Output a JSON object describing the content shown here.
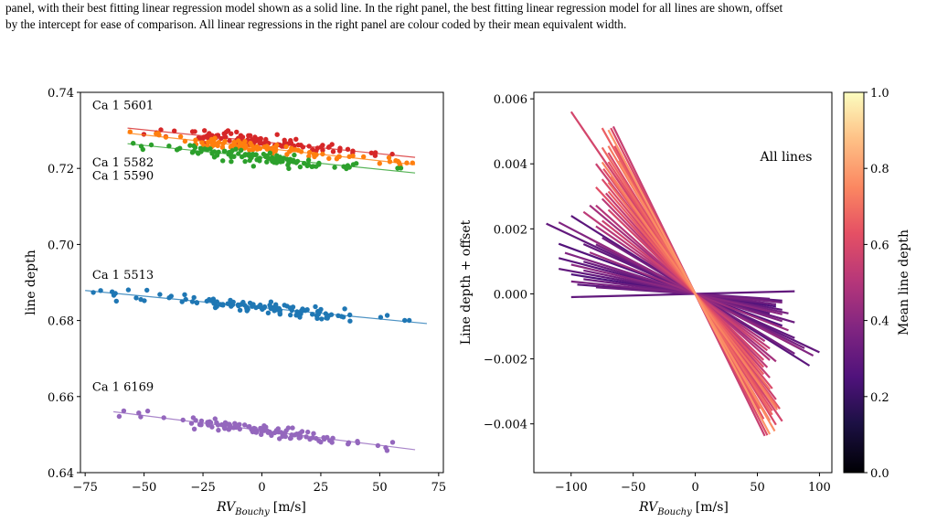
{
  "caption": {
    "line1": "panel, with their best fitting linear regression model shown as a solid line. In the right panel, the best fitting linear regression model for all lines are shown, offset",
    "line2": "by the intercept for ease of comparison. All linear regressions in the right panel are colour coded by their mean equivalent width."
  },
  "chart_data": [
    {
      "type": "scatter",
      "xlabel_main": "RV",
      "xlabel_sub": "Bouchy",
      "xlabel_unit": "[m/s]",
      "ylabel": "line depth",
      "xlim": [
        -77,
        77
      ],
      "ylim": [
        0.64,
        0.74
      ],
      "xticks": [
        -75,
        -50,
        -25,
        0,
        25,
        50,
        75
      ],
      "xtick_labels": [
        "−75",
        "−50",
        "−25",
        "0",
        "25",
        "50",
        "75"
      ],
      "yticks": [
        0.64,
        0.66,
        0.68,
        0.7,
        0.72,
        0.74
      ],
      "ytick_labels": [
        "0.64",
        "0.66",
        "0.68",
        "0.70",
        "0.72",
        "0.74"
      ],
      "grid": false,
      "series": [
        {
          "name": "Ca 1 5601",
          "color": "#d62728",
          "label_pos": [
            -72,
            0.7355
          ],
          "fit": {
            "slope": -6.3e-05,
            "intercept": 0.727,
            "x0": -57,
            "x1": 65
          },
          "scatter_sd": 0.0012,
          "n": 110
        },
        {
          "name": "Ca 1 5582",
          "color": "#ff7f0e",
          "label_pos": [
            -72,
            0.7205
          ],
          "fit": {
            "slope": -6.8e-05,
            "intercept": 0.7254,
            "x0": -57,
            "x1": 65
          },
          "scatter_sd": 0.001,
          "n": 100
        },
        {
          "name": "Ca 1 5590",
          "color": "#2ca02c",
          "label_pos": [
            -72,
            0.717
          ],
          "fit": {
            "slope": -6.3e-05,
            "intercept": 0.7229,
            "x0": -57,
            "x1": 65
          },
          "scatter_sd": 0.0012,
          "n": 110
        },
        {
          "name": "Ca 1 5513",
          "color": "#1f77b4",
          "label_pos": [
            -72,
            0.691
          ],
          "fit": {
            "slope": -6e-05,
            "intercept": 0.6834,
            "x0": -75,
            "x1": 70
          },
          "scatter_sd": 0.0012,
          "n": 120
        },
        {
          "name": "Ca 1 6169",
          "color": "#9467bd",
          "label_pos": [
            -72,
            0.6615
          ],
          "fit": {
            "slope": -7.8e-05,
            "intercept": 0.6511,
            "x0": -63,
            "x1": 65
          },
          "scatter_sd": 0.001,
          "n": 110
        }
      ]
    },
    {
      "type": "line",
      "annotation": "All lines",
      "xlabel_main": "RV",
      "xlabel_sub": "Bouchy",
      "xlabel_unit": "[m/s]",
      "ylabel": "Line depth + offset",
      "xlim": [
        -130,
        110
      ],
      "ylim": [
        -0.0055,
        0.0062
      ],
      "xticks": [
        -100,
        -50,
        0,
        50,
        100
      ],
      "xtick_labels": [
        "−100",
        "−50",
        "0",
        "50",
        "100"
      ],
      "yticks": [
        -0.004,
        -0.002,
        0.0,
        0.002,
        0.004,
        0.006
      ],
      "ytick_labels": [
        "−0.004",
        "−0.002",
        "0.000",
        "0.002",
        "0.004",
        "0.006"
      ],
      "grid": false,
      "colorbar": {
        "label": "Mean line depth",
        "range": [
          0.0,
          1.0
        ],
        "ticks": [
          0.0,
          0.2,
          0.4,
          0.6,
          0.8,
          1.0
        ],
        "tick_labels": [
          "0.0",
          "0.2",
          "0.4",
          "0.6",
          "0.8",
          "1.0"
        ],
        "colormap": "magma"
      },
      "lines": [
        {
          "slope": -5.6e-05,
          "x0": -100,
          "x1": 55,
          "depth": 0.58
        },
        {
          "slope": -7e-05,
          "x0": -65,
          "x1": 55,
          "depth": 0.62
        },
        {
          "slope": -7.2e-05,
          "x0": -70,
          "x1": 60,
          "depth": 0.78
        },
        {
          "slope": -6.8e-05,
          "x0": -75,
          "x1": 52,
          "depth": 0.66
        },
        {
          "slope": -6.5e-05,
          "x0": -70,
          "x1": 60,
          "depth": 0.72
        },
        {
          "slope": -6.2e-05,
          "x0": -70,
          "x1": 65,
          "depth": 0.6
        },
        {
          "slope": -6e-05,
          "x0": -75,
          "x1": 62,
          "depth": 0.68
        },
        {
          "slope": -5.8e-05,
          "x0": -70,
          "x1": 62,
          "depth": 0.64
        },
        {
          "slope": -5.6e-05,
          "x0": -72,
          "x1": 70,
          "depth": 0.58
        },
        {
          "slope": -5.4e-05,
          "x0": -75,
          "x1": 66,
          "depth": 0.74
        },
        {
          "slope": -5.2e-05,
          "x0": -74,
          "x1": 68,
          "depth": 0.62
        },
        {
          "slope": -5e-05,
          "x0": -80,
          "x1": 65,
          "depth": 0.56
        },
        {
          "slope": -4.9e-05,
          "x0": -70,
          "x1": 60,
          "depth": 0.7
        },
        {
          "slope": -4.7e-05,
          "x0": -75,
          "x1": 62,
          "depth": 0.6
        },
        {
          "slope": -4.5e-05,
          "x0": -70,
          "x1": 55,
          "depth": 0.66
        },
        {
          "slope": -4.3e-05,
          "x0": -72,
          "x1": 60,
          "depth": 0.54
        },
        {
          "slope": -4.1e-05,
          "x0": -80,
          "x1": 55,
          "depth": 0.62
        },
        {
          "slope": -3.9e-05,
          "x0": -75,
          "x1": 58,
          "depth": 0.52
        },
        {
          "slope": -3.7e-05,
          "x0": -70,
          "x1": 55,
          "depth": 0.58
        },
        {
          "slope": -3.4e-05,
          "x0": -80,
          "x1": 60,
          "depth": 0.5
        },
        {
          "slope": -3e-05,
          "x0": -75,
          "x1": 58,
          "depth": 0.56
        },
        {
          "slope": -2.6e-05,
          "x0": -80,
          "x1": 56,
          "depth": 0.48
        },
        {
          "slope": -7.5e-05,
          "x0": -68,
          "x1": 58,
          "depth": 0.6
        },
        {
          "slope": -7.8e-05,
          "x0": -66,
          "x1": 56,
          "depth": 0.55
        },
        {
          "slope": -6.6e-05,
          "x0": -62,
          "x1": 64,
          "depth": 0.76
        },
        {
          "slope": -5.3e-05,
          "x0": -68,
          "x1": 66,
          "depth": 0.7
        },
        {
          "slope": -1.8e-05,
          "x0": -120,
          "x1": 100,
          "depth": 0.3
        },
        {
          "slope": -2e-05,
          "x0": -110,
          "x1": 95,
          "depth": 0.38
        },
        {
          "slope": -2.4e-05,
          "x0": -100,
          "x1": 92,
          "depth": 0.28
        },
        {
          "slope": -2.3e-05,
          "x0": -75,
          "x1": 80,
          "depth": 0.34
        },
        {
          "slope": -2e-05,
          "x0": -85,
          "x1": 85,
          "depth": 0.42
        },
        {
          "slope": -1.9e-05,
          "x0": -80,
          "x1": 88,
          "depth": 0.36
        },
        {
          "slope": -1.7e-05,
          "x0": -90,
          "x1": 80,
          "depth": 0.3
        },
        {
          "slope": -1.5e-05,
          "x0": -85,
          "x1": 75,
          "depth": 0.44
        },
        {
          "slope": -1.4e-05,
          "x0": -110,
          "x1": 70,
          "depth": 0.26
        },
        {
          "slope": -1.2e-05,
          "x0": -105,
          "x1": 70,
          "depth": 0.38
        },
        {
          "slope": -1.1e-05,
          "x0": -90,
          "x1": 80,
          "depth": 0.32
        },
        {
          "slope": -1e-05,
          "x0": -110,
          "x1": 60,
          "depth": 0.28
        },
        {
          "slope": -9e-06,
          "x0": -100,
          "x1": 70,
          "depth": 0.4
        },
        {
          "slope": -8e-06,
          "x0": -90,
          "x1": 75,
          "depth": 0.35
        },
        {
          "slope": -7e-06,
          "x0": -110,
          "x1": 70,
          "depth": 0.3
        },
        {
          "slope": -6e-06,
          "x0": -100,
          "x1": 65,
          "depth": 0.25
        },
        {
          "slope": -5e-06,
          "x0": -90,
          "x1": 65,
          "depth": 0.33
        },
        {
          "slope": -3.8e-06,
          "x0": -100,
          "x1": 70,
          "depth": 0.36
        },
        {
          "slope": -3e-06,
          "x0": -95,
          "x1": 70,
          "depth": 0.28
        },
        {
          "slope": -2.5e-06,
          "x0": -80,
          "x1": 60,
          "depth": 0.32
        },
        {
          "slope": 1e-06,
          "x0": -100,
          "x1": 80,
          "depth": 0.3
        },
        {
          "slope": -2.8e-05,
          "x0": -90,
          "x1": 60,
          "depth": 0.52
        },
        {
          "slope": -3.2e-05,
          "x0": -85,
          "x1": 65,
          "depth": 0.46
        }
      ]
    }
  ]
}
